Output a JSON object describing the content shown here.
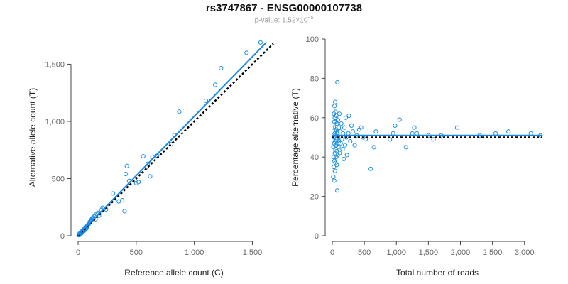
{
  "title": "rs3747867 - ENSG00000107738",
  "subtitle": {
    "prefix": "p-value: 1.52×10",
    "exponent": "−5"
  },
  "colors": {
    "points": "#1f8fe0",
    "fit_line": "#1a86e8",
    "reference_line": "#000000",
    "axis": "#444444"
  },
  "chart_data": [
    {
      "type": "scatter",
      "xlabel": "Reference allele count (C)",
      "ylabel": "Alternative allele count (T)",
      "xlim": [
        0,
        1650
      ],
      "ylim": [
        0,
        1720
      ],
      "xticks": [
        0,
        500,
        1000,
        1500
      ],
      "xtick_labels": [
        "0",
        "500",
        "1,000",
        "1,500"
      ],
      "yticks": [
        0,
        500,
        1000,
        1500
      ],
      "ytick_labels": [
        "0",
        "500",
        "1,000",
        "1,500"
      ],
      "grid": false,
      "points": [
        [
          5,
          5
        ],
        [
          8,
          10
        ],
        [
          10,
          12
        ],
        [
          12,
          18
        ],
        [
          15,
          8
        ],
        [
          18,
          22
        ],
        [
          20,
          25
        ],
        [
          22,
          15
        ],
        [
          25,
          30
        ],
        [
          28,
          20
        ],
        [
          30,
          35
        ],
        [
          32,
          28
        ],
        [
          35,
          40
        ],
        [
          38,
          32
        ],
        [
          40,
          45
        ],
        [
          42,
          38
        ],
        [
          45,
          50
        ],
        [
          48,
          40
        ],
        [
          50,
          55
        ],
        [
          52,
          45
        ],
        [
          55,
          60
        ],
        [
          58,
          50
        ],
        [
          60,
          65
        ],
        [
          62,
          58
        ],
        [
          65,
          70
        ],
        [
          68,
          60
        ],
        [
          70,
          75
        ],
        [
          72,
          68
        ],
        [
          75,
          80
        ],
        [
          78,
          72
        ],
        [
          80,
          90
        ],
        [
          85,
          95
        ],
        [
          90,
          100
        ],
        [
          95,
          110
        ],
        [
          100,
          120
        ],
        [
          105,
          125
        ],
        [
          110,
          130
        ],
        [
          115,
          140
        ],
        [
          120,
          150
        ],
        [
          125,
          155
        ],
        [
          130,
          160
        ],
        [
          140,
          170
        ],
        [
          150,
          145
        ],
        [
          160,
          190
        ],
        [
          170,
          200
        ],
        [
          180,
          175
        ],
        [
          200,
          225
        ],
        [
          210,
          245
        ],
        [
          220,
          235
        ],
        [
          240,
          230
        ],
        [
          300,
          370
        ],
        [
          350,
          300
        ],
        [
          380,
          310
        ],
        [
          400,
          215
        ],
        [
          410,
          540
        ],
        [
          420,
          610
        ],
        [
          440,
          480
        ],
        [
          500,
          460
        ],
        [
          520,
          470
        ],
        [
          560,
          695
        ],
        [
          590,
          600
        ],
        [
          600,
          630
        ],
        [
          620,
          520
        ],
        [
          640,
          690
        ],
        [
          680,
          700
        ],
        [
          800,
          800
        ],
        [
          830,
          880
        ],
        [
          870,
          1085
        ],
        [
          1100,
          1180
        ],
        [
          1180,
          1320
        ],
        [
          1230,
          1465
        ],
        [
          1450,
          1600
        ],
        [
          1570,
          1690
        ]
      ],
      "fit_line": [
        [
          0,
          5
        ],
        [
          1620,
          1690
        ]
      ],
      "reference_line": [
        [
          0,
          0
        ],
        [
          1680,
          1680
        ]
      ]
    },
    {
      "type": "scatter",
      "xlabel": "Total number of reads",
      "ylabel": "Percentage alternative (T)",
      "xlim": [
        0,
        3280
      ],
      "ylim": [
        0,
        100
      ],
      "xticks": [
        0,
        500,
        1000,
        1500,
        2000,
        2500,
        3000
      ],
      "xtick_labels": [
        "0",
        "500",
        "1,000",
        "1,500",
        "2,000",
        "2,500",
        "3,000"
      ],
      "yticks": [
        0,
        20,
        40,
        60,
        80,
        100
      ],
      "ytick_labels": [
        "0",
        "20",
        "40",
        "60",
        "80",
        "100"
      ],
      "grid": false,
      "points": [
        [
          15,
          30
        ],
        [
          18,
          45
        ],
        [
          20,
          40
        ],
        [
          22,
          55
        ],
        [
          25,
          35
        ],
        [
          25,
          62
        ],
        [
          28,
          50
        ],
        [
          30,
          28
        ],
        [
          30,
          47
        ],
        [
          32,
          58
        ],
        [
          35,
          38
        ],
        [
          35,
          66
        ],
        [
          38,
          52
        ],
        [
          40,
          42
        ],
        [
          40,
          60
        ],
        [
          42,
          33
        ],
        [
          45,
          48
        ],
        [
          45,
          68
        ],
        [
          48,
          55
        ],
        [
          50,
          44
        ],
        [
          50,
          63
        ],
        [
          52,
          37
        ],
        [
          55,
          51
        ],
        [
          55,
          58
        ],
        [
          58,
          46
        ],
        [
          60,
          40
        ],
        [
          60,
          54
        ],
        [
          62,
          61
        ],
        [
          65,
          49
        ],
        [
          68,
          43
        ],
        [
          70,
          57
        ],
        [
          70,
          36
        ],
        [
          72,
          52
        ],
        [
          75,
          47
        ],
        [
          78,
          23
        ],
        [
          80,
          78
        ],
        [
          80,
          53
        ],
        [
          85,
          41
        ],
        [
          88,
          59
        ],
        [
          90,
          50
        ],
        [
          95,
          45
        ],
        [
          100,
          55
        ],
        [
          105,
          48
        ],
        [
          110,
          62
        ],
        [
          115,
          42
        ],
        [
          120,
          53
        ],
        [
          130,
          47
        ],
        [
          140,
          57
        ],
        [
          150,
          49
        ],
        [
          160,
          44
        ],
        [
          170,
          52
        ],
        [
          180,
          39
        ],
        [
          190,
          55
        ],
        [
          200,
          46
        ],
        [
          210,
          60
        ],
        [
          220,
          50
        ],
        [
          230,
          41
        ],
        [
          250,
          52
        ],
        [
          260,
          61
        ],
        [
          280,
          48
        ],
        [
          300,
          56
        ],
        [
          320,
          53
        ],
        [
          350,
          46
        ],
        [
          380,
          51
        ],
        [
          420,
          54
        ],
        [
          450,
          55
        ],
        [
          480,
          50
        ],
        [
          520,
          49
        ],
        [
          600,
          34
        ],
        [
          650,
          45
        ],
        [
          680,
          53
        ],
        [
          900,
          49
        ],
        [
          950,
          52
        ],
        [
          980,
          56
        ],
        [
          1050,
          59
        ],
        [
          1150,
          45
        ],
        [
          1250,
          52
        ],
        [
          1280,
          55
        ],
        [
          1320,
          52
        ],
        [
          1500,
          51
        ],
        [
          1580,
          49
        ],
        [
          1700,
          51
        ],
        [
          1950,
          55
        ],
        [
          2300,
          51
        ],
        [
          2550,
          52
        ],
        [
          2750,
          53
        ],
        [
          3100,
          52
        ],
        [
          3250,
          51
        ]
      ],
      "fit_line": [
        [
          0,
          51
        ],
        [
          3270,
          51
        ]
      ],
      "reference_line": [
        [
          0,
          50
        ],
        [
          3270,
          50
        ]
      ]
    }
  ]
}
